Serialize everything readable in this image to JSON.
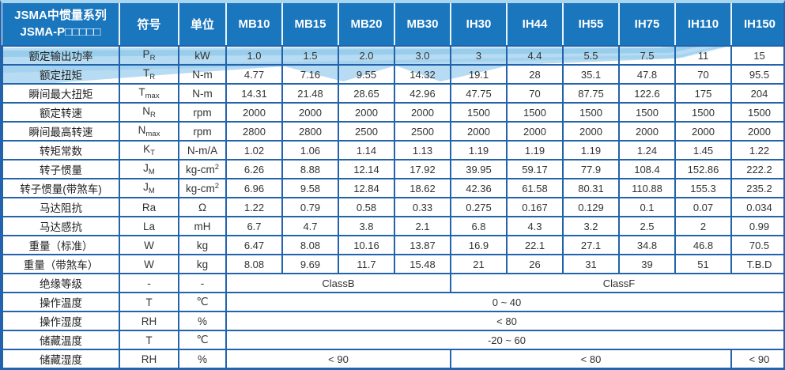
{
  "colors": {
    "header_bg": "#1a76bd",
    "grid_border": "#2263ab",
    "outer_top_strip": "#a9d5ef",
    "wave_main": "#aed7f1",
    "wave_streak": "#7fc2e8",
    "header_text": "#ffffff",
    "cell_text": "#333333"
  },
  "table": {
    "title_line1": "JSMA中惯量系列",
    "title_line2": "JSMA-P□□□□□",
    "col_symbol": "符号",
    "col_unit": "单位",
    "models": [
      "MB10",
      "MB15",
      "MB20",
      "MB30",
      "IH30",
      "IH44",
      "IH55",
      "IH75",
      "IH110",
      "IH150"
    ],
    "rows": [
      {
        "label": "额定输出功率",
        "symbol": "P",
        "symbol_sub": "R",
        "unit": "kW",
        "values": [
          "1.0",
          "1.5",
          "2.0",
          "3.0",
          "3",
          "4.4",
          "5.5",
          "7.5",
          "11",
          "15"
        ]
      },
      {
        "label": "额定扭矩",
        "symbol": "T",
        "symbol_sub": "R",
        "unit": "N-m",
        "values": [
          "4.77",
          "7.16",
          "9.55",
          "14.32",
          "19.1",
          "28",
          "35.1",
          "47.8",
          "70",
          "95.5"
        ]
      },
      {
        "label": "瞬间最大扭矩",
        "symbol": "T",
        "symbol_sub": "max",
        "unit": "N-m",
        "values": [
          "14.31",
          "21.48",
          "28.65",
          "42.96",
          "47.75",
          "70",
          "87.75",
          "122.6",
          "175",
          "204"
        ]
      },
      {
        "label": "额定转速",
        "symbol": "N",
        "symbol_sub": "R",
        "unit": "rpm",
        "values": [
          "2000",
          "2000",
          "2000",
          "2000",
          "1500",
          "1500",
          "1500",
          "1500",
          "1500",
          "1500"
        ]
      },
      {
        "label": "瞬间最高转速",
        "symbol": "N",
        "symbol_sub": "max",
        "unit": "rpm",
        "values": [
          "2800",
          "2800",
          "2500",
          "2500",
          "2000",
          "2000",
          "2000",
          "2000",
          "2000",
          "2000"
        ]
      },
      {
        "label": "转矩常数",
        "symbol": "K",
        "symbol_sub": "T",
        "unit": "N-m/A",
        "values": [
          "1.02",
          "1.06",
          "1.14",
          "1.13",
          "1.19",
          "1.19",
          "1.19",
          "1.24",
          "1.45",
          "1.22"
        ]
      },
      {
        "label": "转子惯量",
        "symbol": "J",
        "symbol_sub": "M",
        "unit": "kg-cm",
        "unit_sup": "2",
        "values": [
          "6.26",
          "8.88",
          "12.14",
          "17.92",
          "39.95",
          "59.17",
          "77.9",
          "108.4",
          "152.86",
          "222.2"
        ]
      },
      {
        "label": "转子惯量(带煞车)",
        "symbol": "J",
        "symbol_sub": "M",
        "unit": "kg-cm",
        "unit_sup": "2",
        "values": [
          "6.96",
          "9.58",
          "12.84",
          "18.62",
          "42.36",
          "61.58",
          "80.31",
          "110.88",
          "155.3",
          "235.2"
        ]
      },
      {
        "label": "马达阻抗",
        "symbol": "Ra",
        "unit": "Ω",
        "values": [
          "1.22",
          "0.79",
          "0.58",
          "0.33",
          "0.275",
          "0.167",
          "0.129",
          "0.1",
          "0.07",
          "0.034"
        ]
      },
      {
        "label": "马达感抗",
        "symbol": "La",
        "unit": "mH",
        "values": [
          "6.7",
          "4.7",
          "3.8",
          "2.1",
          "6.8",
          "4.3",
          "3.2",
          "2.5",
          "2",
          "0.99"
        ]
      },
      {
        "label": "重量（标准）",
        "symbol": "W",
        "unit": "kg",
        "values": [
          "6.47",
          "8.08",
          "10.16",
          "13.87",
          "16.9",
          "22.1",
          "27.1",
          "34.8",
          "46.8",
          "70.5"
        ]
      },
      {
        "label": "重量（带煞车）",
        "symbol": "W",
        "unit": "kg",
        "values": [
          "8.08",
          "9.69",
          "11.7",
          "15.48",
          "21",
          "26",
          "31",
          "39",
          "51",
          "T.B.D"
        ]
      },
      {
        "label": "绝缘等级",
        "symbol": "-",
        "unit": "-",
        "spans": [
          {
            "text": "ClassB",
            "cols": 4
          },
          {
            "text": "ClassF",
            "cols": 6
          }
        ]
      },
      {
        "label": "操作温度",
        "symbol": "T",
        "unit": "℃",
        "spans": [
          {
            "text": "0 ~ 40",
            "cols": 10
          }
        ]
      },
      {
        "label": "操作湿度",
        "symbol": "RH",
        "unit": "%",
        "spans": [
          {
            "text": "< 80",
            "cols": 10
          }
        ]
      },
      {
        "label": "储藏温度",
        "symbol": "T",
        "unit": "℃",
        "spans": [
          {
            "text": "-20 ~ 60",
            "cols": 10
          }
        ]
      },
      {
        "label": "储藏湿度",
        "symbol": "RH",
        "unit": "%",
        "spans": [
          {
            "text": "< 90",
            "cols": 4
          },
          {
            "text": "< 80",
            "cols": 5
          },
          {
            "text": "< 90",
            "cols": 1
          }
        ]
      }
    ]
  }
}
